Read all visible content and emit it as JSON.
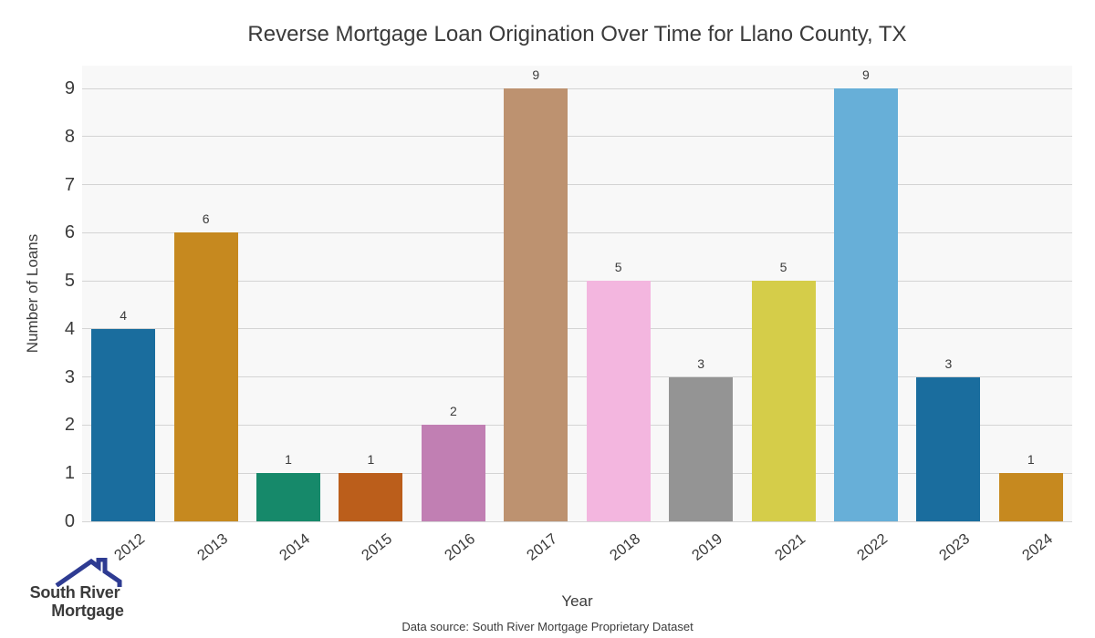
{
  "chart_data": {
    "type": "bar",
    "title": "Reverse Mortgage Loan Origination Over Time for Llano County, TX",
    "xlabel": "Year",
    "ylabel": "Number of Loans",
    "categories": [
      "2012",
      "2013",
      "2014",
      "2015",
      "2016",
      "2017",
      "2018",
      "2019",
      "2021",
      "2022",
      "2023",
      "2024"
    ],
    "values": [
      4,
      6,
      1,
      1,
      2,
      9,
      5,
      3,
      5,
      9,
      3,
      1
    ],
    "bar_colors": [
      "#1a6d9e",
      "#c6891f",
      "#16896a",
      "#bb5e1b",
      "#c17fb3",
      "#bd9270",
      "#f3b6df",
      "#949494",
      "#d5cd49",
      "#67afd8",
      "#1a6d9e",
      "#c6891f"
    ],
    "ylim": [
      0,
      9.5
    ],
    "yticks": [
      0,
      1,
      2,
      3,
      4,
      5,
      6,
      7,
      8,
      9
    ],
    "grid": true,
    "legend": false,
    "plot_bg": "#f8f8f8",
    "grid_color": "#d4d4d4",
    "value_labels_shown": true
  },
  "footer": {
    "note": "Data source: South River Mortgage Proprietary Dataset"
  },
  "logo": {
    "line1": "South River",
    "line2": "Mortgage",
    "line1_color": "#5577c5",
    "line2_color": "#2e3b92",
    "icon_color": "#2e3b92"
  }
}
